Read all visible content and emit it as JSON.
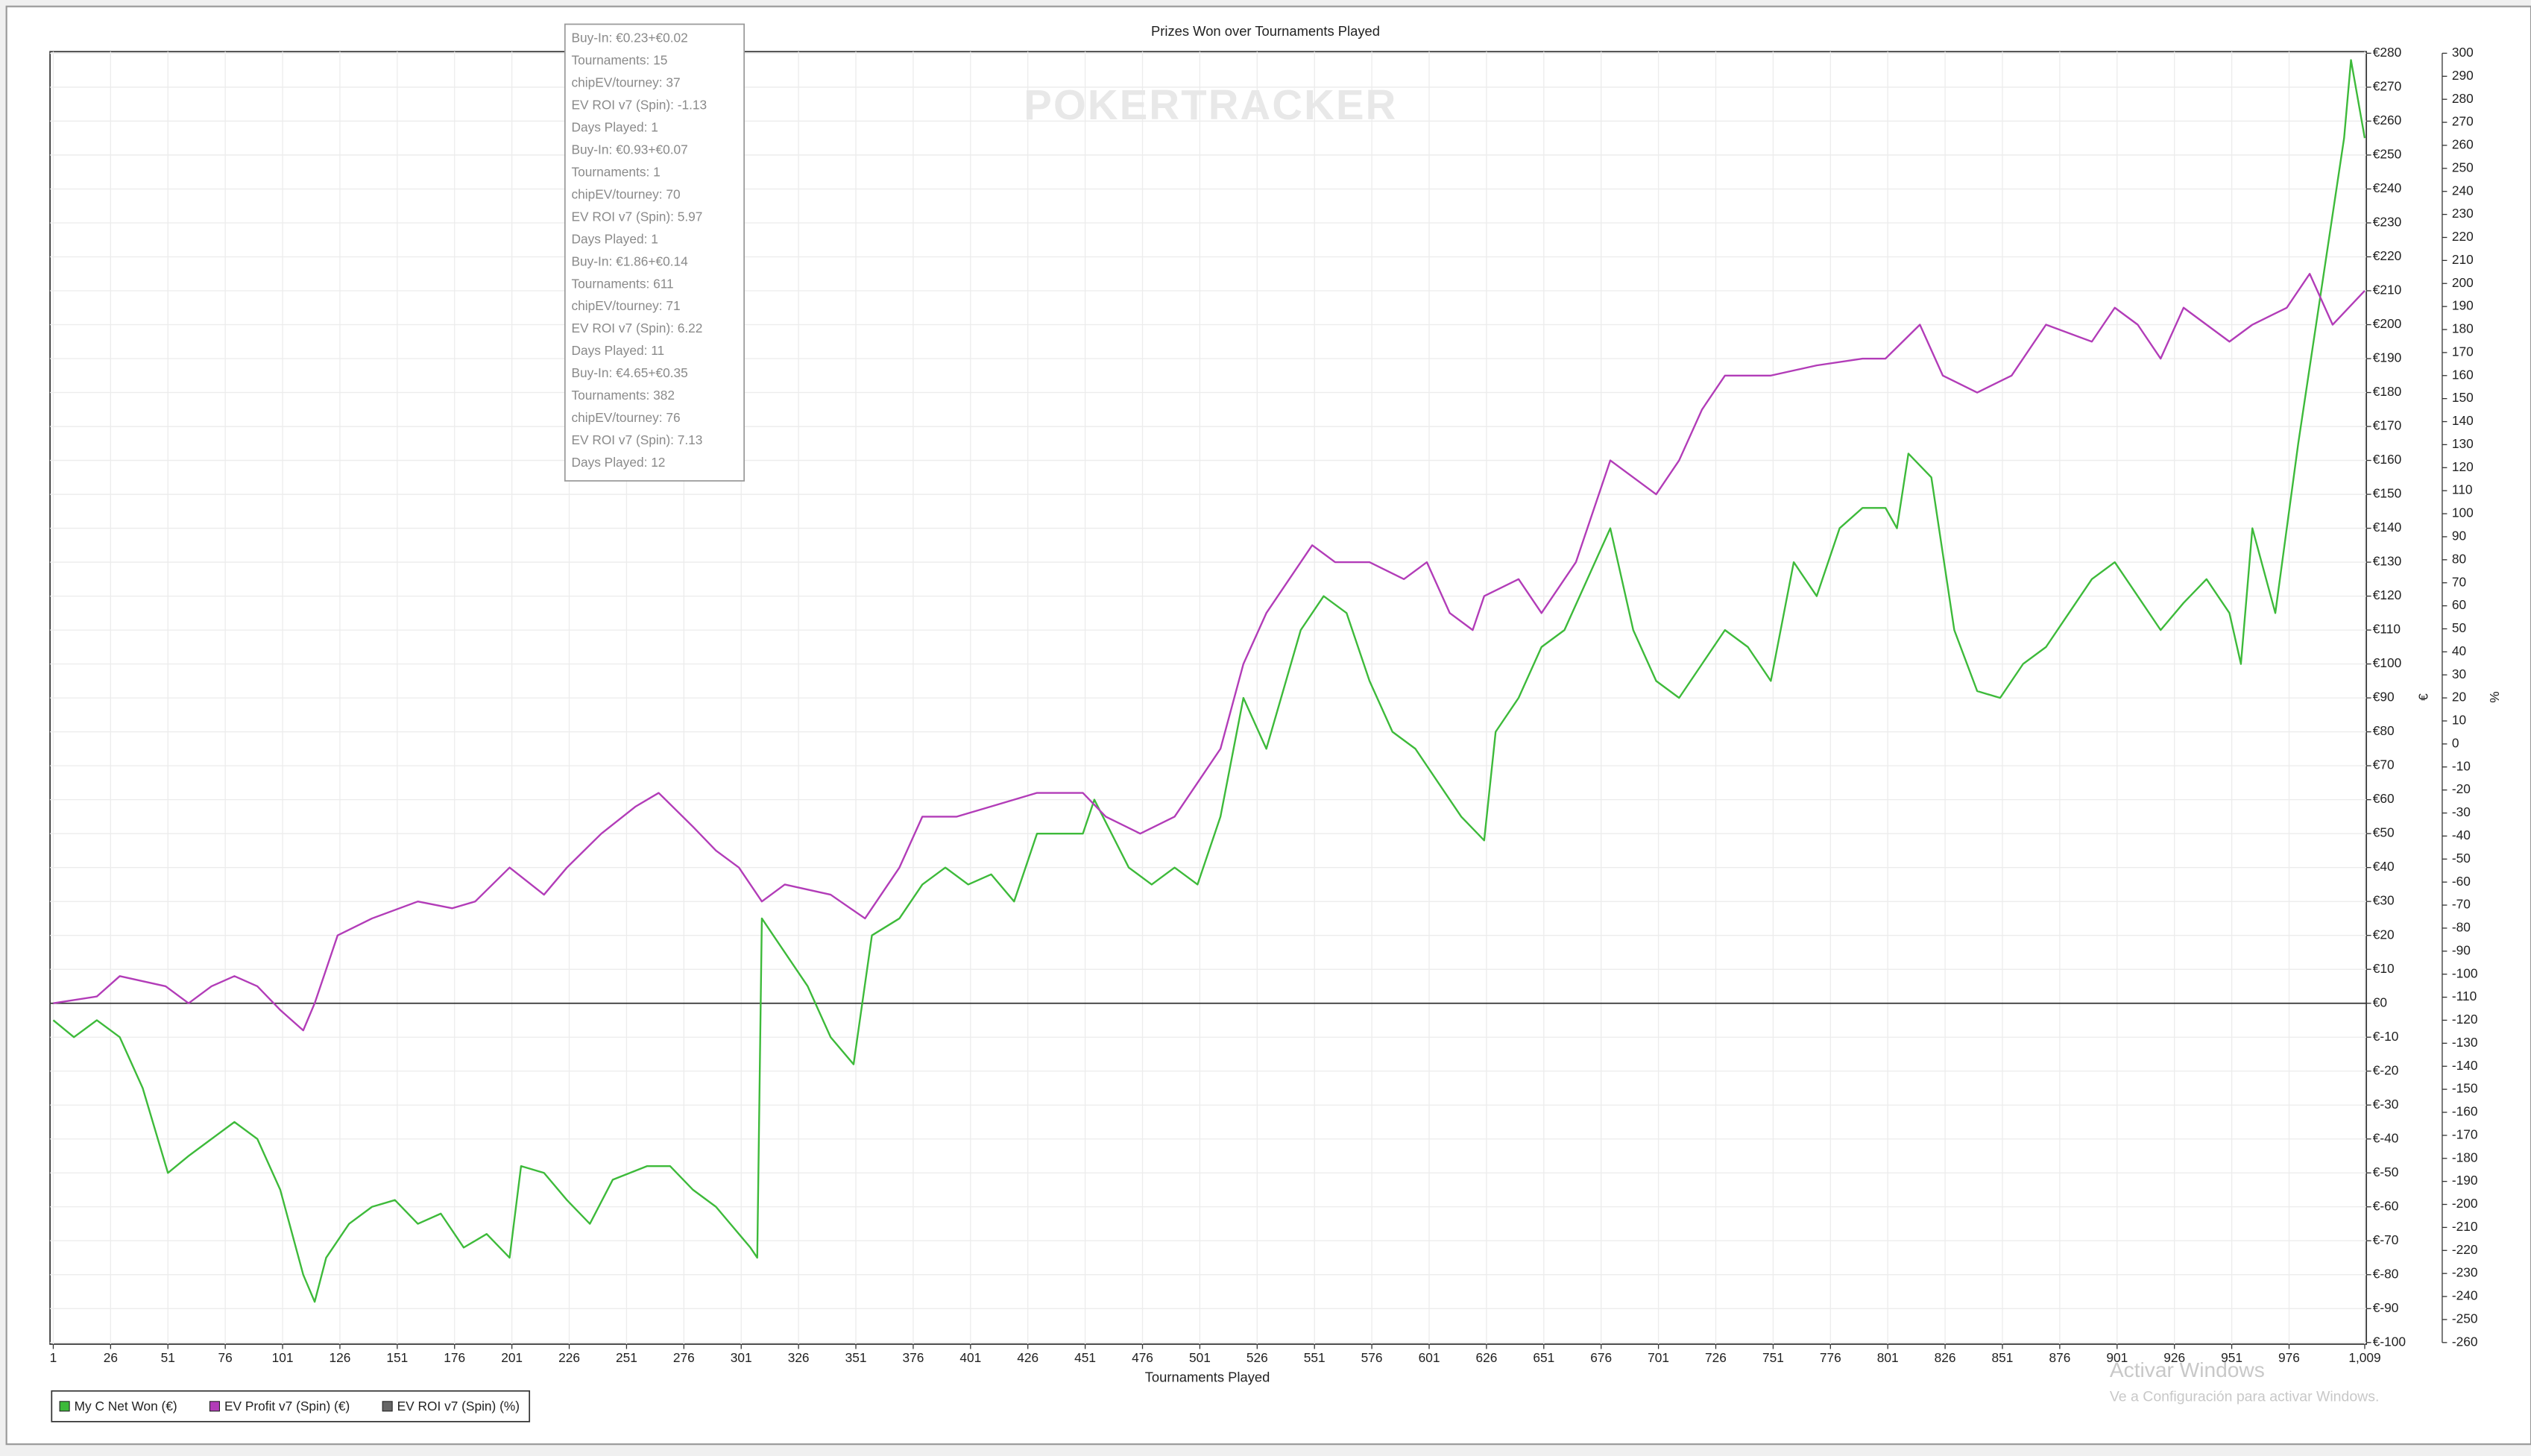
{
  "chart_data": {
    "type": "line",
    "title": "Prizes Won over Tournaments Played",
    "watermark": "POKERTRACKER",
    "x_label": "Tournaments Played",
    "y_label": "€",
    "y2_label": "%",
    "xlim": [
      1,
      1009
    ],
    "xticks": [
      1,
      26,
      51,
      76,
      101,
      126,
      151,
      176,
      201,
      226,
      251,
      276,
      301,
      326,
      351,
      376,
      401,
      426,
      451,
      476,
      501,
      526,
      551,
      576,
      601,
      626,
      651,
      676,
      701,
      726,
      751,
      776,
      801,
      826,
      851,
      876,
      901,
      926,
      951,
      976,
      {
        "value": 1009,
        "label": "1,009"
      }
    ],
    "ylim": [
      -100,
      280
    ],
    "yticks": [
      {
        "value": -100,
        "label": "€-100"
      },
      {
        "value": -90,
        "label": "€-90"
      },
      {
        "value": -80,
        "label": "€-80"
      },
      {
        "value": -70,
        "label": "€-70"
      },
      {
        "value": -60,
        "label": "€-60"
      },
      {
        "value": -50,
        "label": "€-50"
      },
      {
        "value": -40,
        "label": "€-40"
      },
      {
        "value": -30,
        "label": "€-30"
      },
      {
        "value": -20,
        "label": "€-20"
      },
      {
        "value": -10,
        "label": "€-10"
      },
      {
        "value": 0,
        "label": "€0"
      },
      {
        "value": 10,
        "label": "€10"
      },
      {
        "value": 20,
        "label": "€20"
      },
      {
        "value": 30,
        "label": "€30"
      },
      {
        "value": 40,
        "label": "€40"
      },
      {
        "value": 50,
        "label": "€50"
      },
      {
        "value": 60,
        "label": "€60"
      },
      {
        "value": 70,
        "label": "€70"
      },
      {
        "value": 80,
        "label": "€80"
      },
      {
        "value": 90,
        "label": "€90"
      },
      {
        "value": 100,
        "label": "€100"
      },
      {
        "value": 110,
        "label": "€110"
      },
      {
        "value": 120,
        "label": "€120"
      },
      {
        "value": 130,
        "label": "€130"
      },
      {
        "value": 140,
        "label": "€140"
      },
      {
        "value": 150,
        "label": "€150"
      },
      {
        "value": 160,
        "label": "€160"
      },
      {
        "value": 170,
        "label": "€170"
      },
      {
        "value": 180,
        "label": "€180"
      },
      {
        "value": 190,
        "label": "€190"
      },
      {
        "value": 200,
        "label": "€200"
      },
      {
        "value": 210,
        "label": "€210"
      },
      {
        "value": 220,
        "label": "€220"
      },
      {
        "value": 230,
        "label": "€230"
      },
      {
        "value": 240,
        "label": "€240"
      },
      {
        "value": 250,
        "label": "€250"
      },
      {
        "value": 260,
        "label": "€260"
      },
      {
        "value": 270,
        "label": "€270"
      },
      {
        "value": 280,
        "label": "€280"
      }
    ],
    "y2lim": [
      -260,
      300
    ],
    "y2ticks": [
      -260,
      -250,
      -240,
      -230,
      -220,
      -210,
      -200,
      -190,
      -180,
      -170,
      -160,
      -150,
      -140,
      -130,
      -120,
      -110,
      -100,
      -90,
      -80,
      -70,
      -60,
      -50,
      -40,
      -30,
      -20,
      -10,
      0,
      10,
      20,
      30,
      40,
      50,
      60,
      70,
      80,
      90,
      100,
      110,
      120,
      130,
      140,
      150,
      160,
      170,
      180,
      190,
      200,
      210,
      220,
      230,
      240,
      250,
      260,
      270,
      280,
      290,
      300
    ],
    "grid": true,
    "series": [
      {
        "name": "My C Net Won (€)",
        "color": "#3dba3a",
        "x": [
          1,
          10,
          20,
          30,
          40,
          51,
          60,
          70,
          80,
          90,
          100,
          110,
          115,
          120,
          130,
          140,
          150,
          160,
          170,
          180,
          190,
          200,
          205,
          215,
          225,
          235,
          245,
          260,
          270,
          280,
          290,
          300,
          305,
          308,
          310,
          320,
          330,
          340,
          350,
          358,
          370,
          380,
          390,
          400,
          410,
          420,
          430,
          450,
          455,
          470,
          480,
          490,
          500,
          510,
          520,
          530,
          545,
          555,
          565,
          575,
          585,
          595,
          605,
          615,
          625,
          630,
          640,
          650,
          660,
          670,
          680,
          690,
          700,
          710,
          720,
          730,
          740,
          750,
          760,
          770,
          780,
          790,
          800,
          805,
          810,
          820,
          830,
          840,
          850,
          860,
          870,
          880,
          890,
          900,
          910,
          920,
          930,
          940,
          950,
          955,
          960,
          970,
          980,
          990,
          1000,
          1003,
          1009
        ],
        "values": [
          -5,
          -10,
          -5,
          -10,
          -25,
          -50,
          -45,
          -40,
          -35,
          -40,
          -55,
          -80,
          -88,
          -75,
          -65,
          -60,
          -58,
          -65,
          -62,
          -72,
          -68,
          -75,
          -48,
          -50,
          -58,
          -65,
          -52,
          -48,
          -48,
          -55,
          -60,
          -68,
          -72,
          -75,
          25,
          15,
          5,
          -10,
          -18,
          20,
          25,
          35,
          40,
          35,
          38,
          30,
          50,
          50,
          60,
          40,
          35,
          40,
          35,
          55,
          90,
          75,
          110,
          120,
          115,
          95,
          80,
          75,
          65,
          55,
          48,
          80,
          90,
          105,
          110,
          125,
          140,
          110,
          95,
          90,
          100,
          110,
          105,
          95,
          130,
          120,
          140,
          146,
          146,
          140,
          162,
          155,
          110,
          92,
          90,
          100,
          105,
          115,
          125,
          130,
          120,
          110,
          118,
          125,
          115,
          100,
          140,
          115,
          165,
          210,
          255,
          278,
          255
        ]
      },
      {
        "name": "EV Profit v7 (Spin) (€)",
        "color": "#b23cb8",
        "x": [
          1,
          20,
          30,
          50,
          60,
          70,
          80,
          90,
          100,
          110,
          115,
          120,
          125,
          140,
          160,
          175,
          185,
          200,
          215,
          225,
          240,
          255,
          265,
          280,
          290,
          300,
          310,
          320,
          340,
          355,
          370,
          380,
          395,
          410,
          430,
          450,
          460,
          475,
          490,
          500,
          510,
          520,
          530,
          540,
          550,
          560,
          575,
          590,
          600,
          610,
          620,
          625,
          640,
          650,
          665,
          680,
          700,
          710,
          720,
          730,
          750,
          770,
          790,
          800,
          815,
          825,
          840,
          855,
          870,
          890,
          900,
          910,
          920,
          930,
          950,
          960,
          975,
          985,
          995,
          1009
        ],
        "values": [
          0,
          2,
          8,
          5,
          0,
          5,
          8,
          5,
          -2,
          -8,
          0,
          10,
          20,
          25,
          30,
          28,
          30,
          40,
          32,
          40,
          50,
          58,
          62,
          52,
          45,
          40,
          30,
          35,
          32,
          25,
          40,
          55,
          55,
          58,
          62,
          62,
          55,
          50,
          55,
          65,
          75,
          100,
          115,
          125,
          135,
          130,
          130,
          125,
          130,
          115,
          110,
          120,
          125,
          115,
          130,
          160,
          150,
          160,
          175,
          185,
          185,
          188,
          190,
          190,
          200,
          185,
          180,
          185,
          200,
          195,
          205,
          200,
          190,
          205,
          195,
          200,
          205,
          215,
          200,
          210
        ]
      },
      {
        "name": "EV ROI v7 (Spin) (%)",
        "color": "#666666",
        "axis": "y2"
      }
    ]
  },
  "tooltip": {
    "lines": [
      "Buy-In: €0.23+€0.02",
      "Tournaments: 15",
      "chipEV/tourney: 37",
      "EV ROI v7 (Spin): -1.13",
      "Days Played: 1",
      "Buy-In: €0.93+€0.07",
      "Tournaments: 1",
      "chipEV/tourney: 70",
      "EV ROI v7 (Spin): 5.97",
      "Days Played: 1",
      "Buy-In: €1.86+€0.14",
      "Tournaments: 611",
      "chipEV/tourney: 71",
      "EV ROI v7 (Spin): 6.22",
      "Days Played: 11",
      "Buy-In: €4.65+€0.35",
      "Tournaments: 382",
      "chipEV/tourney: 76",
      "EV ROI v7 (Spin): 7.13",
      "Days Played: 12"
    ]
  },
  "os_notice": {
    "title": "Activar Windows",
    "text": "Ve a Configuración para activar Windows."
  }
}
